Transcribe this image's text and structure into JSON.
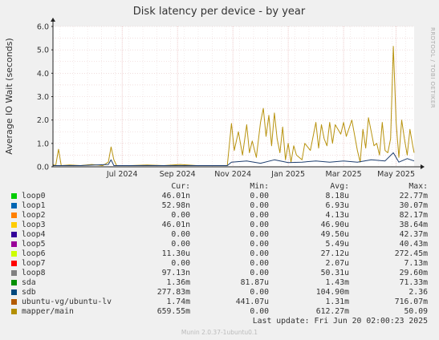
{
  "chart_data": {
    "type": "line",
    "title": "Disk latency per device - by year",
    "ylabel": "Average IO Wait (seconds)",
    "ylim": [
      0,
      6.0
    ],
    "yticks": [
      "0.0",
      "1.0",
      "2.0",
      "3.0",
      "4.0",
      "5.0",
      "6.0"
    ],
    "xticks": [
      "Jul 2024",
      "Sep 2024",
      "Nov 2024",
      "Jan 2025",
      "Mar 2025",
      "May 2025"
    ],
    "x_range_months": [
      0,
      12
    ],
    "xtick_months": [
      2.5,
      4.5,
      6.5,
      8.5,
      10.5,
      12.4
    ],
    "watermark": "RRDTOOL / TOBI OETIKER",
    "series": [
      {
        "name": "mapper/main",
        "color": "#b8930f",
        "points": [
          [
            0,
            0.1
          ],
          [
            0.1,
            0.05
          ],
          [
            0.2,
            0.75
          ],
          [
            0.3,
            0.05
          ],
          [
            0.6,
            0.08
          ],
          [
            1.0,
            0.05
          ],
          [
            1.4,
            0.1
          ],
          [
            1.8,
            0.05
          ],
          [
            2.0,
            0.2
          ],
          [
            2.1,
            0.85
          ],
          [
            2.2,
            0.3
          ],
          [
            2.3,
            0.05
          ],
          [
            2.8,
            0.05
          ],
          [
            3.4,
            0.08
          ],
          [
            4.0,
            0.05
          ],
          [
            4.6,
            0.1
          ],
          [
            5.2,
            0.05
          ],
          [
            5.8,
            0.05
          ],
          [
            6.3,
            0.05
          ],
          [
            6.45,
            1.85
          ],
          [
            6.55,
            0.7
          ],
          [
            6.7,
            1.5
          ],
          [
            6.85,
            0.5
          ],
          [
            7.0,
            1.8
          ],
          [
            7.1,
            0.6
          ],
          [
            7.2,
            1.1
          ],
          [
            7.35,
            0.4
          ],
          [
            7.5,
            1.9
          ],
          [
            7.6,
            2.5
          ],
          [
            7.7,
            1.3
          ],
          [
            7.8,
            2.2
          ],
          [
            7.9,
            0.9
          ],
          [
            8.0,
            2.3
          ],
          [
            8.1,
            1.2
          ],
          [
            8.2,
            0.6
          ],
          [
            8.3,
            1.7
          ],
          [
            8.4,
            0.3
          ],
          [
            8.5,
            1.0
          ],
          [
            8.6,
            0.2
          ],
          [
            8.7,
            0.9
          ],
          [
            8.8,
            0.5
          ],
          [
            9.0,
            0.3
          ],
          [
            9.1,
            1.0
          ],
          [
            9.3,
            0.7
          ],
          [
            9.5,
            1.9
          ],
          [
            9.6,
            0.8
          ],
          [
            9.7,
            1.8
          ],
          [
            9.8,
            1.2
          ],
          [
            9.9,
            0.9
          ],
          [
            10.0,
            1.9
          ],
          [
            10.1,
            1.0
          ],
          [
            10.2,
            1.8
          ],
          [
            10.4,
            1.4
          ],
          [
            10.5,
            1.9
          ],
          [
            10.6,
            1.3
          ],
          [
            10.8,
            2.0
          ],
          [
            11.0,
            0.7
          ],
          [
            11.1,
            0.2
          ],
          [
            11.2,
            1.6
          ],
          [
            11.3,
            0.8
          ],
          [
            11.4,
            2.1
          ],
          [
            11.5,
            1.5
          ],
          [
            11.6,
            0.9
          ],
          [
            11.7,
            1.0
          ],
          [
            11.8,
            0.5
          ],
          [
            11.9,
            1.9
          ],
          [
            12.0,
            0.7
          ],
          [
            12.1,
            0.6
          ],
          [
            12.2,
            1.2
          ],
          [
            12.3,
            5.15
          ],
          [
            12.4,
            1.9
          ],
          [
            12.5,
            0.4
          ],
          [
            12.6,
            2.0
          ],
          [
            12.7,
            1.2
          ],
          [
            12.8,
            0.5
          ],
          [
            12.9,
            1.6
          ],
          [
            13.0,
            0.9
          ],
          [
            13.05,
            0.6
          ]
        ]
      },
      {
        "name": "sda",
        "color": "#1e3e6f",
        "points": [
          [
            0,
            0.05
          ],
          [
            1.0,
            0.05
          ],
          [
            2.0,
            0.1
          ],
          [
            2.1,
            0.3
          ],
          [
            2.2,
            0.05
          ],
          [
            4.0,
            0.05
          ],
          [
            6.3,
            0.05
          ],
          [
            6.45,
            0.2
          ],
          [
            7.0,
            0.25
          ],
          [
            7.5,
            0.15
          ],
          [
            8.0,
            0.3
          ],
          [
            8.5,
            0.18
          ],
          [
            9.0,
            0.2
          ],
          [
            9.5,
            0.25
          ],
          [
            10.0,
            0.2
          ],
          [
            10.5,
            0.25
          ],
          [
            11.0,
            0.2
          ],
          [
            11.5,
            0.3
          ],
          [
            12.0,
            0.25
          ],
          [
            12.3,
            0.6
          ],
          [
            12.5,
            0.2
          ],
          [
            12.8,
            0.35
          ],
          [
            13.05,
            0.25
          ]
        ]
      }
    ]
  },
  "legend": {
    "headers": {
      "cur": "Cur:",
      "min": "Min:",
      "avg": "Avg:",
      "max": "Max:"
    },
    "rows": [
      {
        "name": "loop0",
        "color": "#00cc00",
        "cur": "46.01n",
        "min": "0.00",
        "avg": "8.18u",
        "max": "22.77m"
      },
      {
        "name": "loop1",
        "color": "#0066b3",
        "cur": "52.98n",
        "min": "0.00",
        "avg": "6.93u",
        "max": "30.07m"
      },
      {
        "name": "loop2",
        "color": "#ff8000",
        "cur": "0.00",
        "min": "0.00",
        "avg": "4.13u",
        "max": "82.17m"
      },
      {
        "name": "loop3",
        "color": "#ffcc00",
        "cur": "46.01n",
        "min": "0.00",
        "avg": "46.90u",
        "max": "38.64m"
      },
      {
        "name": "loop4",
        "color": "#330099",
        "cur": "0.00",
        "min": "0.00",
        "avg": "49.50u",
        "max": "42.37m"
      },
      {
        "name": "loop5",
        "color": "#990099",
        "cur": "0.00",
        "min": "0.00",
        "avg": "5.49u",
        "max": "40.43m"
      },
      {
        "name": "loop6",
        "color": "#ccff00",
        "cur": "11.30u",
        "min": "0.00",
        "avg": "27.12u",
        "max": "272.45m"
      },
      {
        "name": "loop7",
        "color": "#ff0000",
        "cur": "0.00",
        "min": "0.00",
        "avg": "2.07u",
        "max": "7.13m"
      },
      {
        "name": "loop8",
        "color": "#808080",
        "cur": "97.13n",
        "min": "0.00",
        "avg": "50.31u",
        "max": "29.60m"
      },
      {
        "name": "sda",
        "color": "#008f00",
        "cur": "1.36m",
        "min": "81.87u",
        "avg": "1.43m",
        "max": "71.33m"
      },
      {
        "name": "sdb",
        "color": "#00487d",
        "cur": "277.83m",
        "min": "0.00",
        "avg": "104.90m",
        "max": "2.36"
      },
      {
        "name": "ubuntu-vg/ubuntu-lv",
        "color": "#b35a00",
        "cur": "1.74m",
        "min": "441.07u",
        "avg": "1.31m",
        "max": "716.07m"
      },
      {
        "name": "mapper/main",
        "color": "#b38f00",
        "cur": "659.55m",
        "min": "0.00",
        "avg": "612.27m",
        "max": "50.09"
      }
    ]
  },
  "last_update": "Last update: Fri Jun 20 02:00:23 2025",
  "footer": "Munin 2.0.37-1ubuntu0.1"
}
